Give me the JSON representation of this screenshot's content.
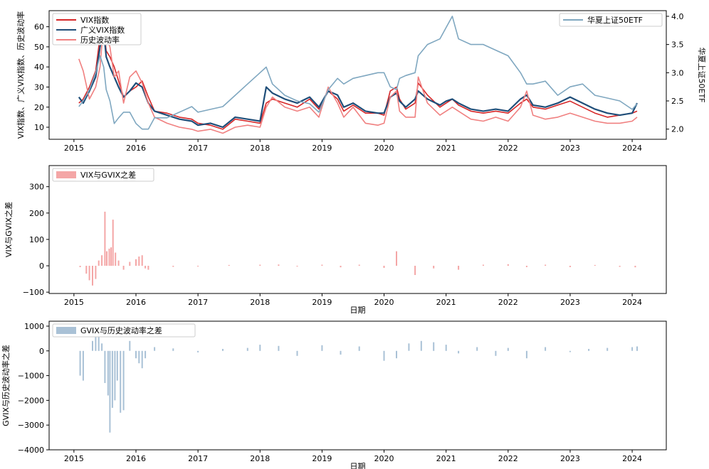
{
  "chart_data": [
    {
      "type": "line",
      "xlabel": "",
      "ylabel": "VIX指数、广义VIX指数、历史波动率",
      "y2label": "华夏上证50ETF",
      "xlim": [
        2014.6,
        2024.55
      ],
      "ylim": [
        4,
        68
      ],
      "y2lim": [
        1.82,
        4.1
      ],
      "xticks": [
        2015,
        2016,
        2017,
        2018,
        2019,
        2020,
        2021,
        2022,
        2023,
        2024
      ],
      "xtick_labels": [
        "2015",
        "2016",
        "2017",
        "2018",
        "2019",
        "2020",
        "2021",
        "2022",
        "2023",
        "2024"
      ],
      "yticks": [
        10,
        20,
        30,
        40,
        50,
        60
      ],
      "y2ticks": [
        2.0,
        2.5,
        3.0,
        3.5,
        4.0
      ],
      "y2tick_labels": [
        "2.0",
        "2.5",
        "3.0",
        "3.5",
        "4.0"
      ],
      "legend_left": [
        "VIX指数",
        "广义VIX指数",
        "历史波动率"
      ],
      "legend_right": [
        "华夏上证50ETF"
      ],
      "legend_left_placement": "upper-left",
      "legend_right_placement": "upper-right",
      "grid": false,
      "series": [
        {
          "name": "VIX指数",
          "color": "#d62728",
          "axis": "left",
          "x": [
            2015.08,
            2015.15,
            2015.25,
            2015.35,
            2015.42,
            2015.48,
            2015.52,
            2015.58,
            2015.65,
            2015.72,
            2015.8,
            2015.9,
            2016.0,
            2016.1,
            2016.2,
            2016.3,
            2016.5,
            2016.7,
            2016.9,
            2017.0,
            2017.2,
            2017.4,
            2017.6,
            2017.8,
            2018.0,
            2018.1,
            2018.2,
            2018.4,
            2018.6,
            2018.8,
            2018.95,
            2019.1,
            2019.25,
            2019.35,
            2019.5,
            2019.7,
            2019.9,
            2020.0,
            2020.1,
            2020.2,
            2020.25,
            2020.35,
            2020.5,
            2020.55,
            2020.7,
            2020.9,
            2021.0,
            2021.1,
            2021.2,
            2021.4,
            2021.6,
            2021.8,
            2022.0,
            2022.2,
            2022.3,
            2022.4,
            2022.6,
            2022.8,
            2023.0,
            2023.2,
            2023.4,
            2023.6,
            2023.8,
            2024.0,
            2024.08
          ],
          "y": [
            22,
            24,
            30,
            38,
            55,
            60,
            48,
            45,
            40,
            33,
            25,
            28,
            30,
            33,
            25,
            18,
            17,
            15,
            14,
            12,
            11,
            9,
            14,
            13,
            12,
            22,
            24,
            22,
            20,
            24,
            19,
            28,
            24,
            18,
            21,
            17,
            17,
            16,
            28,
            30,
            24,
            19,
            22,
            32,
            26,
            20,
            22,
            24,
            21,
            18,
            17,
            18,
            17,
            22,
            24,
            20,
            19,
            21,
            23,
            20,
            17,
            15,
            16,
            17,
            18
          ]
        },
        {
          "name": "广义VIX指数",
          "color": "#1f4e79",
          "axis": "left",
          "x": [
            2015.08,
            2015.15,
            2015.25,
            2015.35,
            2015.42,
            2015.48,
            2015.52,
            2015.58,
            2015.65,
            2015.72,
            2015.8,
            2015.9,
            2016.0,
            2016.1,
            2016.2,
            2016.3,
            2016.5,
            2016.7,
            2016.9,
            2017.0,
            2017.2,
            2017.4,
            2017.6,
            2017.8,
            2018.0,
            2018.1,
            2018.2,
            2018.4,
            2018.6,
            2018.8,
            2018.95,
            2019.1,
            2019.25,
            2019.35,
            2019.5,
            2019.7,
            2019.9,
            2020.0,
            2020.1,
            2020.2,
            2020.25,
            2020.35,
            2020.5,
            2020.55,
            2020.7,
            2020.9,
            2021.0,
            2021.1,
            2021.2,
            2021.4,
            2021.6,
            2021.8,
            2022.0,
            2022.2,
            2022.3,
            2022.4,
            2022.6,
            2022.8,
            2023.0,
            2023.2,
            2023.4,
            2023.6,
            2023.8,
            2024.0,
            2024.08
          ],
          "y": [
            25,
            22,
            28,
            35,
            50,
            58,
            45,
            40,
            35,
            30,
            25,
            28,
            32,
            30,
            22,
            18,
            16,
            14,
            13,
            11,
            12,
            10,
            15,
            14,
            13,
            30,
            27,
            24,
            22,
            25,
            20,
            28,
            26,
            20,
            22,
            18,
            17,
            17,
            25,
            27,
            23,
            20,
            24,
            28,
            24,
            21,
            23,
            24,
            22,
            19,
            18,
            19,
            18,
            24,
            26,
            21,
            20,
            22,
            25,
            22,
            19,
            17,
            16,
            17,
            22
          ]
        },
        {
          "name": "历史波动率",
          "color": "#f08080",
          "axis": "left",
          "x": [
            2015.08,
            2015.15,
            2015.25,
            2015.35,
            2015.42,
            2015.48,
            2015.52,
            2015.58,
            2015.65,
            2015.72,
            2015.8,
            2015.9,
            2016.0,
            2016.1,
            2016.2,
            2016.3,
            2016.5,
            2016.7,
            2016.9,
            2017.0,
            2017.2,
            2017.4,
            2017.6,
            2017.8,
            2018.0,
            2018.1,
            2018.2,
            2018.4,
            2018.6,
            2018.8,
            2018.95,
            2019.1,
            2019.25,
            2019.35,
            2019.5,
            2019.7,
            2019.9,
            2020.0,
            2020.1,
            2020.2,
            2020.25,
            2020.35,
            2020.5,
            2020.55,
            2020.7,
            2020.9,
            2021.0,
            2021.1,
            2021.2,
            2021.4,
            2021.6,
            2021.8,
            2022.0,
            2022.2,
            2022.3,
            2022.4,
            2022.6,
            2022.8,
            2023.0,
            2023.2,
            2023.4,
            2023.6,
            2023.8,
            2024.0,
            2024.08
          ],
          "y": [
            44,
            38,
            24,
            30,
            40,
            62,
            55,
            50,
            35,
            38,
            22,
            35,
            38,
            32,
            22,
            15,
            12,
            10,
            9,
            8,
            9,
            7,
            10,
            11,
            10,
            20,
            25,
            20,
            18,
            20,
            15,
            30,
            22,
            15,
            20,
            12,
            11,
            12,
            25,
            28,
            18,
            15,
            15,
            35,
            22,
            16,
            18,
            20,
            18,
            14,
            13,
            15,
            13,
            20,
            28,
            16,
            14,
            15,
            17,
            15,
            13,
            12,
            12,
            13,
            15
          ]
        },
        {
          "name": "华夏上证50ETF",
          "color": "#7fa7c0",
          "axis": "right",
          "x": [
            2015.08,
            2015.15,
            2015.25,
            2015.35,
            2015.42,
            2015.48,
            2015.52,
            2015.58,
            2015.65,
            2015.72,
            2015.8,
            2015.9,
            2016.0,
            2016.1,
            2016.2,
            2016.3,
            2016.5,
            2016.7,
            2016.9,
            2017.0,
            2017.2,
            2017.4,
            2017.6,
            2017.8,
            2018.0,
            2018.1,
            2018.2,
            2018.4,
            2018.6,
            2018.8,
            2018.95,
            2019.1,
            2019.25,
            2019.35,
            2019.5,
            2019.7,
            2019.9,
            2020.0,
            2020.1,
            2020.2,
            2020.25,
            2020.35,
            2020.5,
            2020.55,
            2020.7,
            2020.9,
            2021.0,
            2021.1,
            2021.2,
            2021.4,
            2021.6,
            2021.8,
            2022.0,
            2022.2,
            2022.3,
            2022.4,
            2022.6,
            2022.8,
            2023.0,
            2023.2,
            2023.4,
            2023.6,
            2023.8,
            2024.0,
            2024.08
          ],
          "y": [
            2.4,
            2.5,
            2.7,
            3.0,
            3.3,
            3.1,
            2.7,
            2.5,
            2.1,
            2.2,
            2.3,
            2.3,
            2.1,
            2.0,
            2.0,
            2.2,
            2.2,
            2.3,
            2.4,
            2.3,
            2.35,
            2.4,
            2.6,
            2.8,
            3.0,
            3.1,
            2.8,
            2.6,
            2.5,
            2.45,
            2.3,
            2.7,
            2.9,
            2.8,
            2.9,
            2.95,
            3.0,
            3.0,
            2.75,
            2.7,
            2.9,
            2.95,
            3.0,
            3.3,
            3.5,
            3.6,
            3.8,
            4.0,
            3.6,
            3.5,
            3.5,
            3.4,
            3.3,
            3.0,
            2.8,
            2.8,
            2.85,
            2.6,
            2.75,
            2.8,
            2.6,
            2.55,
            2.5,
            2.35,
            2.45
          ]
        }
      ]
    },
    {
      "type": "bar",
      "xlabel": "日期",
      "ylabel": "VIX与GVIX之差",
      "xlim": [
        2014.6,
        2024.55
      ],
      "ylim": [
        -105,
        380
      ],
      "xticks": [
        2015,
        2016,
        2017,
        2018,
        2019,
        2020,
        2021,
        2022,
        2023,
        2024
      ],
      "xtick_labels": [
        "2015",
        "2016",
        "2017",
        "2018",
        "2019",
        "2020",
        "2021",
        "2022",
        "2023",
        "2024"
      ],
      "yticks": [
        -100,
        0,
        100,
        200,
        300
      ],
      "ytick_labels": [
        "−100",
        "0",
        "100",
        "200",
        "300"
      ],
      "legend": [
        "VIX与GVIX之差"
      ],
      "legend_placement": "upper-left",
      "color": "#f4a6a6",
      "grid": false,
      "x": [
        2015.1,
        2015.2,
        2015.25,
        2015.3,
        2015.35,
        2015.4,
        2015.45,
        2015.5,
        2015.53,
        2015.57,
        2015.6,
        2015.63,
        2015.67,
        2015.72,
        2015.8,
        2015.9,
        2016.0,
        2016.05,
        2016.1,
        2016.15,
        2016.2,
        2016.6,
        2017.0,
        2017.5,
        2018.0,
        2018.3,
        2018.6,
        2019.0,
        2019.3,
        2019.6,
        2020.0,
        2020.2,
        2020.5,
        2020.8,
        2021.2,
        2021.6,
        2022.0,
        2022.3,
        2022.6,
        2023.0,
        2023.4,
        2023.8,
        2024.05
      ],
      "y": [
        -5,
        -30,
        -55,
        -75,
        -50,
        20,
        40,
        205,
        55,
        65,
        70,
        175,
        50,
        20,
        -15,
        15,
        25,
        35,
        40,
        -10,
        -15,
        -4,
        -3,
        3,
        4,
        5,
        -3,
        4,
        -6,
        4,
        -8,
        55,
        -35,
        -10,
        -15,
        4,
        6,
        -5,
        4,
        -5,
        3,
        -4,
        -6
      ]
    },
    {
      "type": "bar",
      "xlabel": "日期",
      "ylabel": "GVIX与历史波动率之差",
      "xlim": [
        2014.6,
        2024.55
      ],
      "ylim": [
        -4000,
        1200
      ],
      "xticks": [
        2015,
        2016,
        2017,
        2018,
        2019,
        2020,
        2021,
        2022,
        2023,
        2024
      ],
      "xtick_labels": [
        "2015",
        "2016",
        "2017",
        "2018",
        "2019",
        "2020",
        "2021",
        "2022",
        "2023",
        "2024"
      ],
      "yticks": [
        -4000,
        -3000,
        -2000,
        -1000,
        0,
        1000
      ],
      "ytick_labels": [
        "−4000",
        "−3000",
        "−2000",
        "−1000",
        "0",
        "1000"
      ],
      "legend": [
        "GVIX与历史波动率之差"
      ],
      "legend_placement": "upper-left",
      "color": "#a9c1d6",
      "grid": false,
      "x": [
        2015.1,
        2015.15,
        2015.3,
        2015.35,
        2015.4,
        2015.45,
        2015.5,
        2015.55,
        2015.58,
        2015.62,
        2015.66,
        2015.7,
        2015.75,
        2015.8,
        2015.9,
        2016.0,
        2016.05,
        2016.1,
        2016.15,
        2016.3,
        2016.6,
        2017.0,
        2017.4,
        2017.8,
        2018.0,
        2018.3,
        2018.6,
        2019.0,
        2019.3,
        2019.6,
        2020.0,
        2020.2,
        2020.4,
        2020.6,
        2020.8,
        2021.0,
        2021.2,
        2021.5,
        2021.8,
        2022.0,
        2022.3,
        2022.6,
        2023.0,
        2023.3,
        2023.6,
        2024.0,
        2024.08
      ],
      "y": [
        -1000,
        -1200,
        400,
        700,
        600,
        300,
        -1300,
        -1800,
        -3300,
        -2300,
        -2000,
        -1200,
        -2500,
        -2400,
        400,
        -300,
        -500,
        -700,
        -300,
        150,
        100,
        -60,
        80,
        120,
        250,
        200,
        -200,
        230,
        -150,
        180,
        -400,
        -300,
        300,
        400,
        350,
        250,
        -100,
        150,
        -200,
        120,
        -300,
        150,
        -50,
        80,
        120,
        150,
        180
      ]
    }
  ]
}
